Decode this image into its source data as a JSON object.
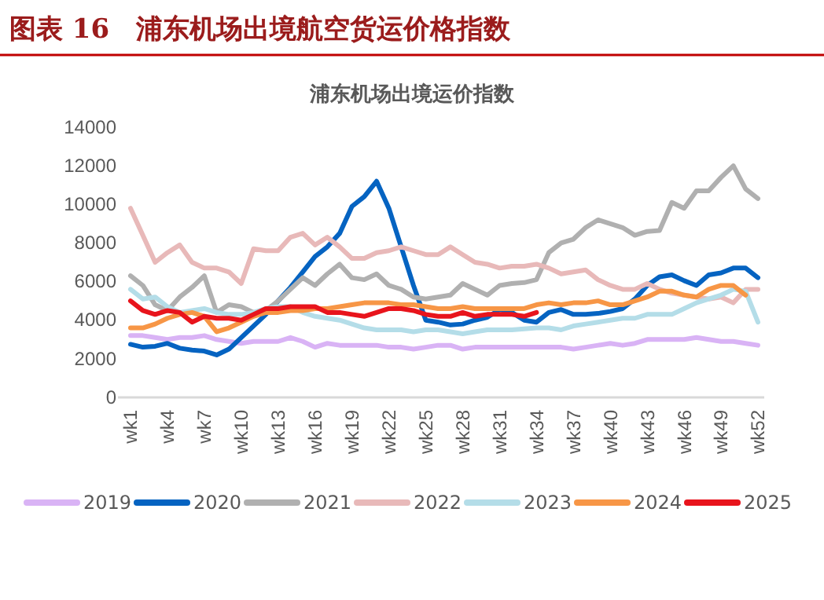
{
  "chart_data": {
    "type": "line",
    "title": "图表 16　浦东机场出境航空货运价格指数",
    "subtitle": "浦东机场出境运价指数",
    "categories": [
      "wk1",
      null,
      null,
      "wk4",
      null,
      null,
      "wk7",
      null,
      null,
      "wk10",
      null,
      null,
      "wk13",
      null,
      null,
      "wk16",
      null,
      null,
      "wk19",
      null,
      null,
      "wk22",
      null,
      null,
      "wk25",
      null,
      null,
      "wk28",
      null,
      null,
      "wk31",
      null,
      null,
      "wk34",
      null,
      null,
      "wk37",
      null,
      null,
      "wk40",
      null,
      null,
      "wk43",
      null,
      null,
      "wk46",
      null,
      null,
      "wk49",
      null,
      null,
      "wk52"
    ],
    "ylim": [
      0,
      14000
    ],
    "yticks": [
      0,
      2000,
      4000,
      6000,
      8000,
      10000,
      12000,
      14000
    ],
    "legend": "bottom",
    "marker": "none",
    "line_style": "solid",
    "series": [
      {
        "name": "2019",
        "color": "#d9b3f5",
        "values": [
          3200,
          3200,
          3100,
          3000,
          3100,
          3100,
          3200,
          3000,
          2900,
          2800,
          2900,
          2900,
          2900,
          3100,
          2900,
          2600,
          2800,
          2700,
          2700,
          2700,
          2700,
          2600,
          2600,
          2500,
          2600,
          2700,
          2700,
          2500,
          2600,
          2600,
          2600,
          2600,
          2600,
          2600,
          2600,
          2600,
          2500,
          2600,
          2700,
          2800,
          2700,
          2800,
          3000,
          3000,
          3000,
          3000,
          3100,
          3000,
          2900,
          2900,
          2800,
          2700
        ]
      },
      {
        "name": "2020",
        "color": "#0563c1",
        "values": [
          2750,
          2600,
          2650,
          2800,
          2550,
          2450,
          2400,
          2200,
          2500,
          3100,
          3700,
          4300,
          5000,
          5700,
          6500,
          7300,
          7800,
          8500,
          9900,
          10400,
          11200,
          9800,
          7800,
          5800,
          4000,
          3900,
          3750,
          3800,
          4000,
          4150,
          4550,
          4400,
          4000,
          3900,
          4400,
          4550,
          4300,
          4300,
          4350,
          4450,
          4600,
          5100,
          5800,
          6250,
          6350,
          6050,
          5800,
          6350,
          6450,
          6700,
          6700,
          6200
        ]
      },
      {
        "name": "2021",
        "color": "#b0b0b0",
        "values": [
          6300,
          5800,
          4800,
          4500,
          5200,
          5700,
          6300,
          4400,
          4800,
          4700,
          4400,
          4500,
          5000,
          5600,
          6200,
          5800,
          6400,
          6900,
          6200,
          6100,
          6400,
          5800,
          5600,
          5200,
          5100,
          5200,
          5300,
          5900,
          5600,
          5300,
          5800,
          5900,
          5950,
          6100,
          7500,
          8000,
          8200,
          8800,
          9200,
          9000,
          8800,
          8400,
          8600,
          8650,
          10100,
          9800,
          10700,
          10700,
          11400,
          12000,
          10800,
          10300
        ]
      },
      {
        "name": "2022",
        "color": "#e8b9b9",
        "values": [
          9800,
          8400,
          7000,
          7500,
          7900,
          7000,
          6700,
          6700,
          6500,
          5900,
          7700,
          7600,
          7600,
          8300,
          8500,
          7900,
          8300,
          7800,
          7200,
          7200,
          7500,
          7600,
          7800,
          7600,
          7400,
          7400,
          7800,
          7400,
          7000,
          6900,
          6700,
          6800,
          6800,
          6900,
          6700,
          6400,
          6500,
          6600,
          6100,
          5800,
          5600,
          5600,
          5900,
          5600,
          5400,
          5300,
          5200,
          5100,
          5200,
          4900,
          5600,
          5600
        ]
      },
      {
        "name": "2023",
        "color": "#b4dde8",
        "values": [
          5600,
          5100,
          5200,
          4700,
          4400,
          4500,
          4600,
          4400,
          4300,
          4300,
          4400,
          4600,
          4700,
          4700,
          4400,
          4200,
          4100,
          4000,
          3800,
          3600,
          3500,
          3500,
          3500,
          3400,
          3500,
          3500,
          3400,
          3300,
          3400,
          3500,
          3500,
          3500,
          3550,
          3600,
          3600,
          3500,
          3700,
          3800,
          3900,
          4000,
          4100,
          4100,
          4300,
          4300,
          4300,
          4600,
          4900,
          5100,
          5300,
          5600,
          5500,
          3900
        ]
      },
      {
        "name": "2024",
        "color": "#f79646",
        "values": [
          3600,
          3600,
          3800,
          4100,
          4300,
          4400,
          4200,
          3400,
          3600,
          3900,
          4200,
          4400,
          4400,
          4500,
          4500,
          4600,
          4600,
          4700,
          4800,
          4900,
          4900,
          4900,
          4800,
          4800,
          4700,
          4600,
          4600,
          4700,
          4600,
          4600,
          4600,
          4600,
          4600,
          4800,
          4900,
          4800,
          4900,
          4900,
          5000,
          4800,
          4800,
          5000,
          5200,
          5500,
          5500,
          5300,
          5200,
          5600,
          5800,
          5800,
          5300,
          null
        ]
      },
      {
        "name": "2025",
        "color": "#e8141c",
        "values": [
          5000,
          4500,
          4300,
          4500,
          4400,
          3900,
          4200,
          4100,
          4100,
          4000,
          4300,
          4600,
          4600,
          4700,
          4700,
          4700,
          4400,
          4400,
          4300,
          4200,
          4400,
          4600,
          4600,
          4500,
          4300,
          4200,
          4200,
          4400,
          4200,
          4300,
          4300,
          4300,
          4200,
          4400,
          null,
          null,
          null,
          null,
          null,
          null,
          null,
          null,
          null,
          null,
          null,
          null,
          null,
          null,
          null,
          null,
          null,
          null
        ]
      }
    ]
  }
}
